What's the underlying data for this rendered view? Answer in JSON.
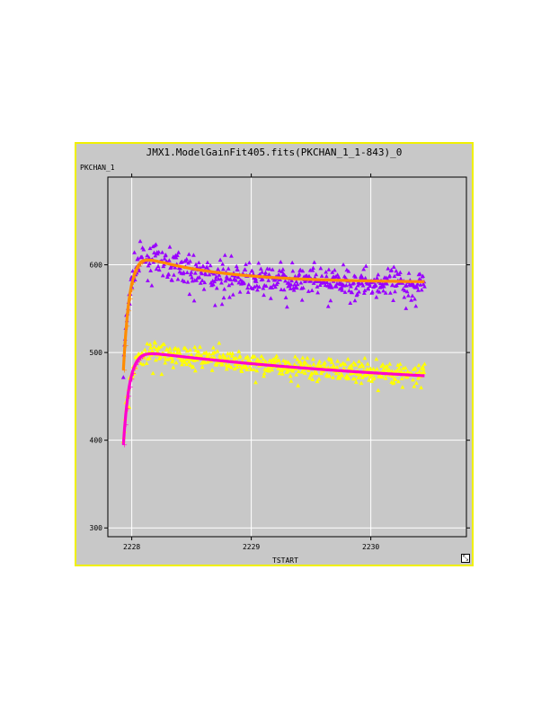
{
  "window": {
    "title": "JMX1.ModelGainFit405.fits(PKCHAN_1_1-843)_0",
    "resize_glyph": "⤡"
  },
  "colors": {
    "background": "#c8c8c8",
    "border": "#f0f000",
    "grid": "#ffffff",
    "purple_points": "#9900ff",
    "orange_fit": "#ff8c00",
    "yellow_points": "#ffff00",
    "magenta_fit": "#ff00cc"
  },
  "chart_data": {
    "type": "scatter",
    "title": "JMX1.ModelGainFit405.fits(PKCHAN_1_1-843)_0",
    "xlabel": "TSTART",
    "ylabel": "PKCHAN_1",
    "xlim": [
      2227.8,
      2230.8
    ],
    "ylim": [
      290,
      700
    ],
    "x_ticks": [
      2228,
      2229,
      2230
    ],
    "x_tick_labels": [
      "2228",
      "2229",
      "2230"
    ],
    "y_ticks": [
      300,
      400,
      500,
      600
    ],
    "y_tick_labels": [
      "300",
      "400",
      "500",
      "600"
    ],
    "grid": true,
    "series": [
      {
        "marker": "triangle",
        "color": "#9900ff",
        "model": {
          "x0": 2227.93,
          "x1": 2230.45,
          "start": 480,
          "plateau": 578,
          "peak": 612,
          "rise": 0.05,
          "decay": 0.55,
          "spread": 12
        },
        "n_points": 520
      },
      {
        "marker": "line",
        "color": "#ff8c00",
        "model": {
          "x0": 2227.93,
          "x1": 2230.45,
          "start": 480,
          "plateau": 580,
          "peak": 610,
          "rise": 0.05,
          "decay": 0.65
        }
      },
      {
        "marker": "triangle",
        "color": "#ffff00",
        "model": {
          "x0": 2227.93,
          "x1": 2230.45,
          "start": 395,
          "plateau": 460,
          "peak": 503,
          "rise": 0.05,
          "decay": 2.2,
          "spread": 9
        },
        "n_points": 520
      },
      {
        "marker": "line",
        "color": "#ff00cc",
        "model": {
          "x0": 2227.93,
          "x1": 2230.45,
          "start": 395,
          "plateau": 455,
          "peak": 501,
          "rise": 0.05,
          "decay": 2.6
        }
      }
    ]
  }
}
